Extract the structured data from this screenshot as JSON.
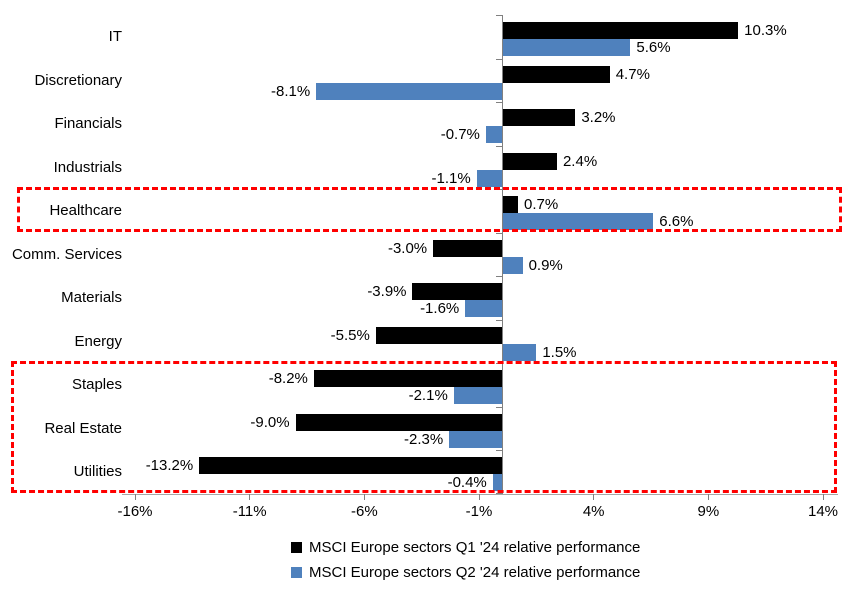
{
  "chart_data": {
    "type": "bar",
    "orientation": "horizontal",
    "title": "",
    "categories": [
      "IT",
      "Discretionary",
      "Financials",
      "Industrials",
      "Healthcare",
      "Comm. Services",
      "Materials",
      "Energy",
      "Staples",
      "Real Estate",
      "Utilities"
    ],
    "series": [
      {
        "name": "MSCI Europe sectors Q1 '24 relative performance",
        "color": "#000000",
        "values": [
          10.3,
          4.7,
          3.2,
          2.4,
          0.7,
          -3.0,
          -3.9,
          -5.5,
          -8.2,
          -9.0,
          -13.2
        ],
        "labels": [
          "10.3%",
          "4.7%",
          "3.2%",
          "2.4%",
          "0.7%",
          "-3.0%",
          "-3.9%",
          "-5.5%",
          "-8.2%",
          "-9.0%",
          "-13.2%"
        ]
      },
      {
        "name": "MSCI Europe sectors Q2 '24 relative performance",
        "color": "#4f81bd",
        "values": [
          5.6,
          -8.1,
          -0.7,
          -1.1,
          6.6,
          0.9,
          -1.6,
          1.5,
          -2.1,
          -2.3,
          -0.4
        ],
        "labels": [
          "5.6%",
          "-8.1%",
          "-0.7%",
          "-1.1%",
          "6.6%",
          "0.9%",
          "-1.6%",
          "1.5%",
          "-2.1%",
          "-2.3%",
          "-0.4%"
        ]
      }
    ],
    "x_axis": {
      "min": -16,
      "max": 14,
      "ticks": [
        {
          "value": -16,
          "label": "-16%"
        },
        {
          "value": -11,
          "label": "-11%"
        },
        {
          "value": -6,
          "label": "-6%"
        },
        {
          "value": -1,
          "label": "-1%"
        },
        {
          "value": 4,
          "label": "4%"
        },
        {
          "value": 9,
          "label": "9%"
        },
        {
          "value": 14,
          "label": "14%"
        }
      ]
    },
    "grid": false,
    "data_labels": true,
    "legend_position": "bottom",
    "colors": {
      "background": "#ffffff",
      "text": "#000000",
      "axis_line": "#a6a6a6",
      "tick": "#808080",
      "highlight": "#ff0000"
    },
    "highlight_boxes": [
      {
        "name": "healthcare-highlight",
        "categories": [
          "Healthcare"
        ],
        "color": "#ff0000",
        "style": "dashed"
      },
      {
        "name": "staples-realestate-utilities-highlight",
        "categories": [
          "Staples",
          "Real Estate",
          "Utilities"
        ],
        "color": "#ff0000",
        "style": "dashed"
      }
    ]
  }
}
